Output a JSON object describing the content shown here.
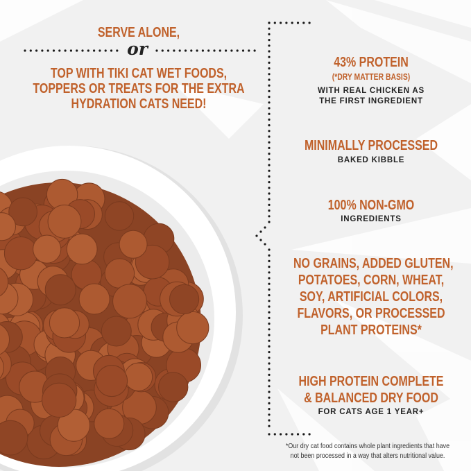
{
  "left": {
    "line1": "SERVE ALONE,",
    "or": "or",
    "lines": [
      "TOP WITH TIKI CAT WET FOODS,",
      "TOPPERS OR TREATS FOR THE EXTRA",
      "HYDRATION CATS NEED!"
    ]
  },
  "features": [
    {
      "title": [
        "43% PROTEIN"
      ],
      "note": "(*DRY MATTER BASIS)",
      "sub": [
        "WITH REAL CHICKEN AS",
        "THE FIRST INGREDIENT"
      ]
    },
    {
      "title": [
        "MINIMALLY PROCESSED"
      ],
      "sub": [
        "BAKED KIBBLE"
      ]
    },
    {
      "title": [
        "100% NON-GMO"
      ],
      "sub": [
        "INGREDIENTS"
      ]
    },
    {
      "title": [
        "NO GRAINS, ADDED GLUTEN,",
        "POTATOES, CORN, WHEAT,",
        "SOY, ARTIFICIAL COLORS,",
        "FLAVORS, OR PROCESSED",
        "PLANT PROTEINS*"
      ]
    },
    {
      "title": [
        "HIGH PROTEIN COMPLETE",
        "& BALANCED DRY FOOD"
      ],
      "sub": [
        "FOR CATS AGE 1 YEAR+"
      ]
    }
  ],
  "footnote": [
    "*Our dry cat food contains whole plant ingredients that have",
    "not been processed in a way that alters nutritional value."
  ],
  "colors": {
    "accent": "#c0612b",
    "kibble": "#a5532d",
    "background": "#f1f1f1"
  }
}
